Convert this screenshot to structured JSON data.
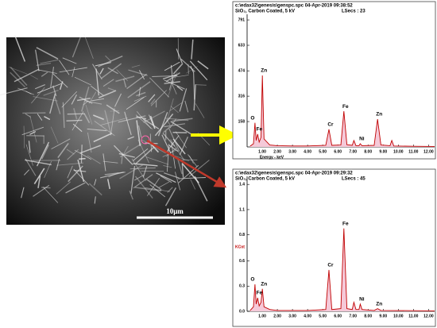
{
  "sem_scale_label": "10μm",
  "chart_data": [
    {
      "type": "line",
      "header": [
        "c:\\edax32\\genesis\\genspc.spc  04-Apr-2019 09:38:52",
        "SiO₂, Carbon Coated,  5 kV"
      ],
      "live_time": "LSecs : 23",
      "x_label": "Energy - keV",
      "x": [
        0.2,
        0.42,
        0.52,
        0.6,
        0.7,
        0.8,
        0.92,
        1.01,
        1.12,
        1.5,
        2.0,
        3.0,
        4.0,
        5.2,
        5.41,
        5.6,
        6.2,
        6.4,
        6.6,
        6.95,
        7.06,
        7.2,
        7.4,
        7.48,
        7.6,
        8.4,
        8.63,
        8.85,
        9.45,
        9.57,
        9.7,
        11.0,
        12.4
      ],
      "series": [
        {
          "name": "Counts",
          "color": "#c00000",
          "fill": "#f5c9d8",
          "values": [
            5,
            20,
            150,
            40,
            80,
            30,
            60,
            445,
            50,
            12,
            8,
            6,
            6,
            10,
            110,
            10,
            12,
            222,
            14,
            10,
            40,
            8,
            8,
            20,
            8,
            10,
            173,
            12,
            8,
            40,
            6,
            4,
            3
          ]
        }
      ],
      "annotations": [
        {
          "text": "O",
          "x": 0.52
        },
        {
          "text": "Fe",
          "x": 0.7
        },
        {
          "text": "Zn",
          "x": 1.01
        },
        {
          "text": "Cr",
          "x": 5.41
        },
        {
          "text": "Fe",
          "x": 6.4
        },
        {
          "text": "Ni",
          "x": 7.48
        },
        {
          "text": "Zn",
          "x": 8.63
        }
      ],
      "xlim": [
        0,
        12.4
      ],
      "ylim": [
        0,
        826
      ],
      "xticks": [
        {
          "value": 1,
          "label": "1.00"
        },
        {
          "value": 2,
          "label": "2.00"
        },
        {
          "value": 3,
          "label": "3.00"
        },
        {
          "value": 4,
          "label": "4.00"
        },
        {
          "value": 5,
          "label": "5.00"
        },
        {
          "value": 6,
          "label": "6.00"
        },
        {
          "value": 7,
          "label": "7.00"
        },
        {
          "value": 8,
          "label": "8.00"
        },
        {
          "value": 9,
          "label": "9.00"
        },
        {
          "value": 10,
          "label": "10.00"
        },
        {
          "value": 11,
          "label": "11.00"
        },
        {
          "value": 12,
          "label": "12.00"
        }
      ],
      "yticks": [
        158,
        316,
        474,
        633,
        791
      ]
    },
    {
      "type": "line",
      "header": [
        "c:\\edax32\\genesis\\genspc.spc  04-Apr-2019 09:29:32",
        "SiO₂, Carbon Coated,  5 kV"
      ],
      "live_time": "LSecs : 45",
      "y_label": "KCnt",
      "x": [
        0.2,
        0.42,
        0.52,
        0.6,
        0.7,
        0.8,
        0.92,
        1.01,
        1.12,
        1.5,
        2.0,
        3.0,
        4.0,
        5.2,
        5.41,
        5.6,
        6.2,
        6.4,
        6.6,
        6.95,
        7.06,
        7.2,
        7.4,
        7.48,
        7.6,
        8.4,
        8.63,
        8.85,
        12.4
      ],
      "series": [
        {
          "name": "Counts",
          "color": "#c00000",
          "fill": "#f5c9d8",
          "values": [
            0.01,
            0.05,
            0.3,
            0.08,
            0.15,
            0.06,
            0.1,
            0.25,
            0.05,
            0.02,
            0.01,
            0.01,
            0.01,
            0.02,
            0.46,
            0.02,
            0.03,
            0.92,
            0.03,
            0.02,
            0.1,
            0.02,
            0.02,
            0.08,
            0.02,
            0.01,
            0.03,
            0.01,
            0.005
          ]
        }
      ],
      "annotations": [
        {
          "text": "O",
          "x": 0.52
        },
        {
          "text": "Fe",
          "x": 0.7
        },
        {
          "text": "Zn",
          "x": 1.01
        },
        {
          "text": "Cr",
          "x": 5.41
        },
        {
          "text": "Fe",
          "x": 6.4
        },
        {
          "text": "Ni",
          "x": 7.48
        },
        {
          "text": "Zn",
          "x": 8.63
        }
      ],
      "xlim": [
        0,
        12.4
      ],
      "ylim": [
        0,
        1.5
      ],
      "xticks": [
        {
          "value": 1,
          "label": "1.00"
        },
        {
          "value": 2,
          "label": "2.00"
        },
        {
          "value": 3,
          "label": "3.00"
        },
        {
          "value": 4,
          "label": "4.00"
        },
        {
          "value": 5,
          "label": "5.00"
        },
        {
          "value": 6,
          "label": "6.00"
        },
        {
          "value": 7,
          "label": "7.00"
        },
        {
          "value": 8,
          "label": "8.00"
        },
        {
          "value": 9,
          "label": "9.00"
        },
        {
          "value": 10,
          "label": "10.00"
        },
        {
          "value": 11,
          "label": "11.00"
        },
        {
          "value": 12,
          "label": "12.00"
        }
      ],
      "yticks": [
        {
          "value": 0,
          "label": "0.0"
        },
        {
          "value": 0.28,
          "label": "0.3"
        },
        {
          "value": 0.56,
          "label": "0.6"
        },
        {
          "value": 0.85,
          "label": "0.8"
        },
        {
          "value": 1.13,
          "label": "1.1"
        },
        {
          "value": 1.41,
          "label": "1.4"
        }
      ]
    }
  ]
}
